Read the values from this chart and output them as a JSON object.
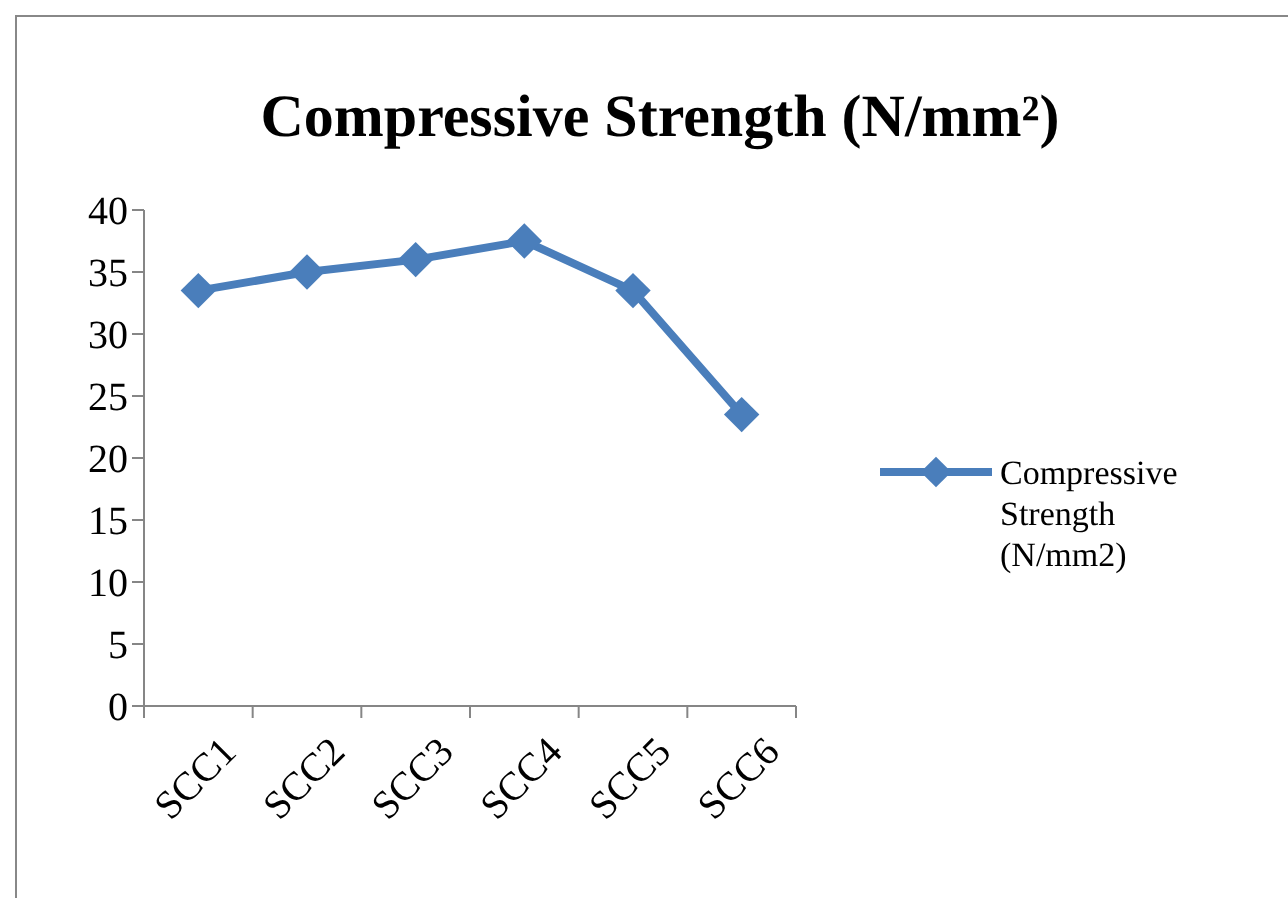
{
  "chart_data": {
    "type": "line",
    "title": "Compressive Strength (N/mm²)",
    "categories": [
      "SCC1",
      "SCC2",
      "SCC3",
      "SCC4",
      "SCC5",
      "SCC6"
    ],
    "series": [
      {
        "name": "Compressive Strength (N/mm2)",
        "color": "#4a7ebb",
        "values": [
          33.5,
          35,
          36,
          37.5,
          33.5,
          23.5
        ]
      }
    ],
    "ylim": [
      0,
      40
    ],
    "yticks": [
      0,
      5,
      10,
      15,
      20,
      25,
      30,
      35,
      40
    ],
    "marker": "diamond",
    "legend": "right"
  }
}
